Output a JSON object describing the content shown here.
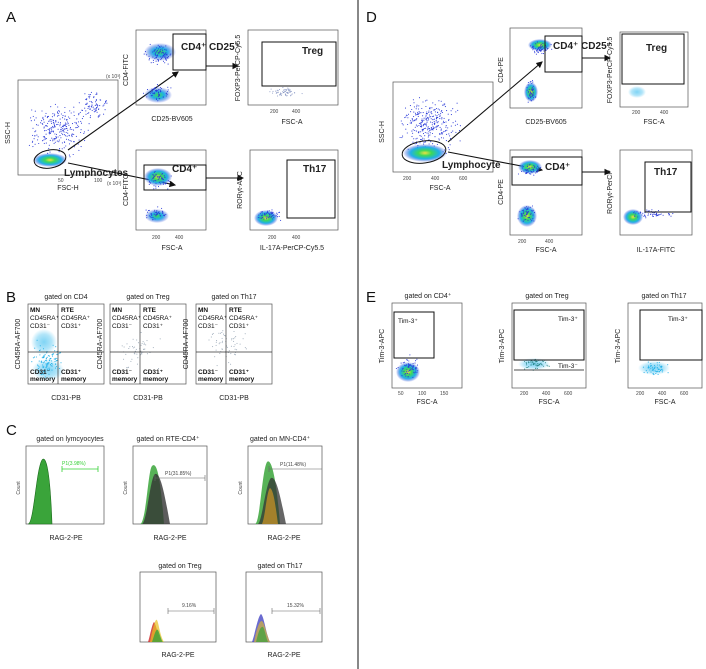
{
  "panels": {
    "A": "A",
    "B": "B",
    "C": "C",
    "D": "D",
    "E": "E"
  },
  "a": {
    "scatter_ylabel": "SSC-H",
    "scatter_xlabel": "FSC-H",
    "scale_label": "(x 10³)",
    "ticks_x": [
      "50",
      "100"
    ],
    "ticks_y": [
      "50",
      "100"
    ],
    "lymph_gate": "Lymphocytes",
    "p1": {
      "ylabel": "CD4-FITC",
      "xlabel": "CD25-BV605",
      "gate": "CD4⁺ CD25⁺"
    },
    "p2": {
      "ylabel": "FOXP3-PerCP-Cy5.5",
      "xlabel": "FSC-A",
      "gate": "Treg",
      "ticks": [
        "200",
        "400"
      ]
    },
    "p3": {
      "ylabel": "CD4-FITC",
      "xlabel": "FSC-A",
      "gate": "CD4⁺",
      "ticks": [
        "200",
        "400"
      ]
    },
    "p4": {
      "ylabel": "RORγt-APC",
      "xlabel": "IL-17A-PerCP-Cy5.5",
      "gate": "Th17",
      "ticks": [
        "200",
        "400"
      ]
    }
  },
  "d": {
    "scatter_ylabel": "SSC-H",
    "scatter_xlabel": "FSC-A",
    "ticks_x": [
      "200",
      "400",
      "600"
    ],
    "lymph_gate": "Lymphocyte",
    "p1": {
      "ylabel": "CD4-PE",
      "xlabel": "CD25-BV605",
      "gate": "CD4⁺ CD25⁺"
    },
    "p2": {
      "ylabel": "FOXP3-PerCP-Cy5.5",
      "xlabel": "FSC-A",
      "gate": "Treg",
      "ticks": [
        "200",
        "400"
      ]
    },
    "p3": {
      "ylabel": "CD4-PE",
      "xlabel": "FSC-A",
      "gate": "CD4⁺",
      "ticks": [
        "200",
        "400"
      ]
    },
    "p4": {
      "ylabel": "RORγt-PerCP",
      "xlabel": "IL-17A-FITC",
      "gate": "Th17"
    }
  },
  "b": {
    "titles": [
      "gated on CD4",
      "gated on Treg",
      "gated on Th17"
    ],
    "ylabel": "CD45RA-AF700",
    "xlabel": "CD31-PB",
    "q_mn": "MN",
    "q_mn_sub1": "CD45RA⁺",
    "q_mn_sub2": "CD31⁻",
    "q_rte": "RTE",
    "q_rte_sub1": "CD45RA⁺",
    "q_rte_sub2": "CD31⁺",
    "q_bl1": "CD31⁻",
    "q_bl2": "memory",
    "q_br1": "CD31⁺",
    "q_br2": "memory"
  },
  "c": {
    "titles": [
      "gated on lymcyocytes",
      "gated on RTE-CD4⁺",
      "gated on MN-CD4⁺",
      "gated on Treg",
      "gated on Th17"
    ],
    "xlabel": "RAG-2-PE",
    "ylabel": "Count",
    "gates": [
      "P1(3.98%)",
      "P1(31.85%)",
      "P1(11.48%)",
      "9.16%",
      "15.32%"
    ]
  },
  "e": {
    "titles": [
      "gated on CD4⁺",
      "gated on Treg",
      "gated on Th17"
    ],
    "ylabel": "Tim-3-APC",
    "xlabel": "FSC-A",
    "pos": "Tim-3⁺",
    "neg": "Tim-3⁻",
    "ticks1": [
      "50",
      "100",
      "150"
    ],
    "ticks2": [
      "200",
      "400",
      "600"
    ]
  },
  "colors": {
    "density_low": "#2a3ad8",
    "density_mid": "#1fb0e8",
    "density_high": "#3cd85a",
    "hist_green": "#3aa43a"
  }
}
